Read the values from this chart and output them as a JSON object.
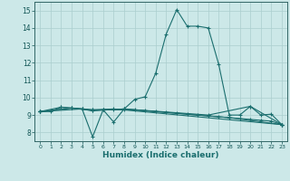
{
  "xlabel": "Humidex (Indice chaleur)",
  "xlim": [
    -0.5,
    23.5
  ],
  "ylim": [
    7.5,
    15.5
  ],
  "xticks": [
    0,
    1,
    2,
    3,
    4,
    5,
    6,
    7,
    8,
    9,
    10,
    11,
    12,
    13,
    14,
    15,
    16,
    17,
    18,
    19,
    20,
    21,
    22,
    23
  ],
  "yticks": [
    8,
    9,
    10,
    11,
    12,
    13,
    14,
    15
  ],
  "background_color": "#cce8e8",
  "grid_color": "#aacece",
  "line_color": "#1a6e6e",
  "series1": [
    [
      0,
      9.2
    ],
    [
      1,
      9.2
    ],
    [
      2,
      9.45
    ],
    [
      3,
      9.4
    ],
    [
      4,
      9.35
    ],
    [
      5,
      7.75
    ],
    [
      6,
      9.3
    ],
    [
      7,
      8.6
    ],
    [
      8,
      9.35
    ],
    [
      9,
      9.9
    ],
    [
      10,
      10.05
    ],
    [
      11,
      11.4
    ],
    [
      12,
      13.65
    ],
    [
      13,
      15.05
    ],
    [
      14,
      14.1
    ],
    [
      15,
      14.1
    ],
    [
      16,
      14.0
    ],
    [
      17,
      11.9
    ],
    [
      18,
      9.0
    ],
    [
      19,
      9.0
    ],
    [
      20,
      9.5
    ],
    [
      21,
      9.0
    ],
    [
      22,
      9.05
    ],
    [
      23,
      8.45
    ]
  ],
  "series2": [
    [
      0,
      9.2
    ],
    [
      3,
      9.4
    ],
    [
      4,
      9.35
    ],
    [
      5,
      9.3
    ],
    [
      6,
      9.3
    ],
    [
      7,
      9.3
    ],
    [
      8,
      9.3
    ],
    [
      9,
      9.3
    ],
    [
      10,
      9.25
    ],
    [
      11,
      9.2
    ],
    [
      12,
      9.15
    ],
    [
      13,
      9.1
    ],
    [
      14,
      9.05
    ],
    [
      15,
      9.0
    ],
    [
      16,
      8.95
    ],
    [
      17,
      8.9
    ],
    [
      18,
      8.85
    ],
    [
      19,
      8.8
    ],
    [
      20,
      8.75
    ],
    [
      21,
      8.7
    ],
    [
      22,
      8.65
    ],
    [
      23,
      8.45
    ]
  ],
  "series3": [
    [
      0,
      9.2
    ],
    [
      2,
      9.45
    ],
    [
      5,
      9.3
    ],
    [
      7,
      9.35
    ],
    [
      23,
      8.45
    ]
  ],
  "series4": [
    [
      0,
      9.2
    ],
    [
      3,
      9.4
    ],
    [
      5,
      9.25
    ],
    [
      8,
      9.35
    ],
    [
      16,
      9.0
    ],
    [
      20,
      9.5
    ],
    [
      23,
      8.45
    ]
  ],
  "series5": [
    [
      0,
      9.2
    ],
    [
      4,
      9.35
    ],
    [
      5,
      9.25
    ],
    [
      6,
      9.3
    ],
    [
      8,
      9.35
    ],
    [
      18,
      8.85
    ],
    [
      23,
      8.45
    ]
  ]
}
